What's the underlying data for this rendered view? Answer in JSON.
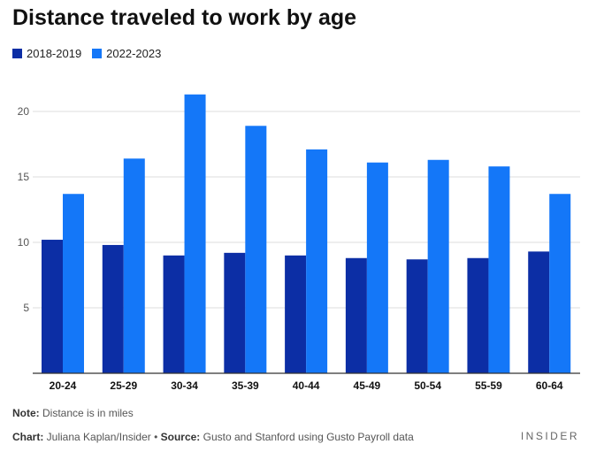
{
  "title": "Distance traveled to work by age",
  "colors": {
    "series1": "#0c2ea5",
    "series2": "#1477f8",
    "grid": "#dddddd",
    "axis": "#333333"
  },
  "chart_data": {
    "type": "bar",
    "title": "Distance traveled to work by age",
    "xlabel": "",
    "ylabel": "",
    "ylim": [
      0,
      25
    ],
    "yticks": [
      5,
      10,
      15,
      20
    ],
    "categories": [
      "20-24",
      "25-29",
      "30-34",
      "35-39",
      "40-44",
      "45-49",
      "50-54",
      "55-59",
      "60-64"
    ],
    "series": [
      {
        "name": "2018-2019",
        "values": [
          10.2,
          9.8,
          9.0,
          9.2,
          9.0,
          8.8,
          8.7,
          8.8,
          9.3
        ]
      },
      {
        "name": "2022-2023",
        "values": [
          13.7,
          16.4,
          21.3,
          18.9,
          17.1,
          16.1,
          16.3,
          15.8,
          13.7
        ]
      }
    ]
  },
  "footer": {
    "note_label": "Note:",
    "note_text": " Distance is in miles",
    "chart_label": "Chart:",
    "chart_text": " Juliana Kaplan/Insider • ",
    "source_label": "Source:",
    "source_text": " Gusto and Stanford using Gusto Payroll data",
    "brand": "INSIDER"
  }
}
